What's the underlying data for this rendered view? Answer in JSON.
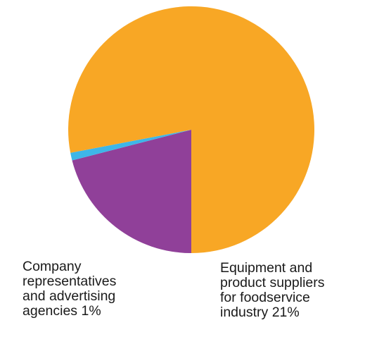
{
  "chart_data": {
    "type": "pie",
    "title": "",
    "slices": [
      {
        "label": "Equipment and product suppliers for foodservice industry 21%",
        "value": 21,
        "color": "#904099"
      },
      {
        "label": "Company representatives and advertising agencies 1%",
        "value": 1,
        "color": "#3eb6e8"
      },
      {
        "label": "",
        "value": 78,
        "color": "#f8a725"
      }
    ],
    "start_angle_deg": 90,
    "direction": "clockwise-from-start",
    "legend": "none"
  },
  "labels": {
    "company_lines": "Company\nrepresentatives\nand advertising\nagencies 1%",
    "equipment_lines": "Equipment and\nproduct suppliers\nfor foodservice\nindustry 21%"
  }
}
